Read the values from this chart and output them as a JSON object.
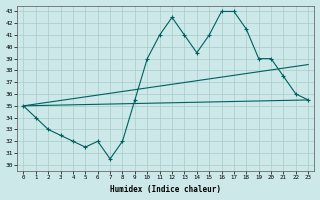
{
  "xlabel": "Humidex (Indice chaleur)",
  "background_color": "#cce8e8",
  "grid_color": "#aacccc",
  "line_color": "#006060",
  "xlim": [
    -0.5,
    23.5
  ],
  "ylim": [
    29.5,
    43.5
  ],
  "yticks": [
    30,
    31,
    32,
    33,
    34,
    35,
    36,
    37,
    38,
    39,
    40,
    41,
    42,
    43
  ],
  "xticks": [
    0,
    1,
    2,
    3,
    4,
    5,
    6,
    7,
    8,
    9,
    10,
    11,
    12,
    13,
    14,
    15,
    16,
    17,
    18,
    19,
    20,
    21,
    22,
    23
  ],
  "line1_x": [
    0,
    1,
    2,
    3,
    4,
    5,
    6,
    7,
    8,
    9,
    10,
    11,
    12,
    13,
    14,
    15,
    16,
    17,
    18,
    19,
    20,
    21,
    22,
    23
  ],
  "line1_y": [
    35.0,
    34.0,
    33.0,
    32.5,
    32.0,
    31.5,
    32.0,
    30.5,
    32.0,
    35.5,
    39.0,
    41.0,
    42.5,
    41.0,
    39.5,
    41.0,
    43.0,
    43.0,
    41.5,
    39.0,
    39.0,
    37.5,
    36.0,
    35.5
  ],
  "line2_x": [
    0,
    23
  ],
  "line2_y": [
    35.0,
    38.5
  ],
  "line3_x": [
    0,
    23
  ],
  "line3_y": [
    35.0,
    35.5
  ]
}
